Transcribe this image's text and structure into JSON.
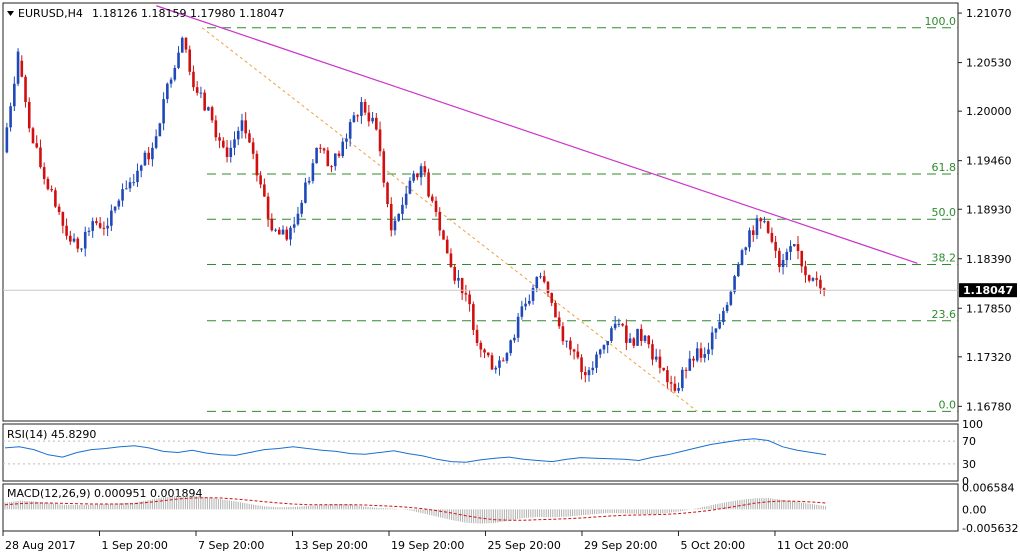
{
  "header": {
    "symbol_label": "EURUSD,H4",
    "ohlc_label": "1.18126 1.18159 1.17980 1.18047"
  },
  "price_panel": {
    "current_price_label": "1.18047",
    "y_ticks": [
      "1.21070",
      "1.20530",
      "1.20000",
      "1.19460",
      "1.18930",
      "1.18390",
      "1.17850",
      "1.17320",
      "1.16780"
    ]
  },
  "fib_levels": [
    {
      "label": "100.0",
      "price": 1.2091
    },
    {
      "label": "61.8",
      "price": 1.19315
    },
    {
      "label": "50.0",
      "price": 1.18821
    },
    {
      "label": "38.2",
      "price": 1.18327
    },
    {
      "label": "23.6",
      "price": 1.17713
    },
    {
      "label": "0.0",
      "price": 1.16725
    }
  ],
  "rsi_panel": {
    "label": "RSI(14) 45.8290",
    "y_ticks": [
      "100",
      "70",
      "30",
      "0"
    ]
  },
  "macd_panel": {
    "label": "MACD(12,26,9) 0.000951 0.001894",
    "y_ticks": [
      "0.006584",
      "0.00",
      "-0.005632"
    ]
  },
  "time_axis": [
    "28 Aug 2017",
    "1 Sep 20:00",
    "7 Sep 20:00",
    "13 Sep 20:00",
    "19 Sep 20:00",
    "25 Sep 20:00",
    "29 Sep 20:00",
    "5 Oct 20:00",
    "11 Oct 20:00"
  ],
  "colors": {
    "bull": "#1f49b8",
    "bear": "#d01010",
    "fib": "#2e8b2e",
    "trendline": "#cc33cc",
    "fib_diag": "#f0a040",
    "rsi": "#1a6fd0",
    "macd_signal": "#cc1111"
  },
  "chart_data": {
    "type": "candlestick",
    "symbol": "EURUSD",
    "timeframe": "H4",
    "ylim": [
      1.1662,
      1.2118
    ],
    "anchors": [
      [
        1.1955,
        1.2065
      ],
      [
        1.2055,
        1.1965
      ],
      [
        1.1965,
        1.1915
      ],
      [
        1.1915,
        1.1875
      ],
      [
        1.1875,
        1.185
      ],
      [
        1.185,
        1.188
      ],
      [
        1.188,
        1.1875
      ],
      [
        1.1875,
        1.1915
      ],
      [
        1.1915,
        1.1935
      ],
      [
        1.1935,
        1.196
      ],
      [
        1.196,
        1.203
      ],
      [
        1.203,
        1.208
      ],
      [
        1.208,
        1.202
      ],
      [
        1.202,
        1.199
      ],
      [
        1.199,
        1.195
      ],
      [
        1.195,
        1.199
      ],
      [
        1.199,
        1.193
      ],
      [
        1.193,
        1.187
      ],
      [
        1.187,
        1.186
      ],
      [
        1.186,
        1.19
      ],
      [
        1.19,
        1.196
      ],
      [
        1.196,
        1.194
      ],
      [
        1.194,
        1.197
      ],
      [
        1.197,
        1.201
      ],
      [
        1.201,
        1.198
      ],
      [
        1.198,
        1.187
      ],
      [
        1.187,
        1.191
      ],
      [
        1.191,
        1.194
      ],
      [
        1.194,
        1.189
      ],
      [
        1.189,
        1.183
      ],
      [
        1.183,
        1.18
      ],
      [
        1.18,
        1.174
      ],
      [
        1.174,
        1.172
      ],
      [
        1.172,
        1.175
      ],
      [
        1.175,
        1.179
      ],
      [
        1.179,
        1.182
      ],
      [
        1.182,
        1.1775
      ],
      [
        1.1775,
        1.174
      ],
      [
        1.174,
        1.1712
      ],
      [
        1.1712,
        1.174
      ],
      [
        1.174,
        1.1768
      ],
      [
        1.1768,
        1.1752
      ],
      [
        1.1752,
        1.1755
      ],
      [
        1.1755,
        1.172
      ],
      [
        1.172,
        1.1695
      ],
      [
        1.1695,
        1.173
      ],
      [
        1.173,
        1.1735
      ],
      [
        1.1735,
        1.177
      ],
      [
        1.177,
        1.182
      ],
      [
        1.182,
        1.187
      ],
      [
        1.187,
        1.188
      ],
      [
        1.188,
        1.183
      ],
      [
        1.183,
        1.1855
      ],
      [
        1.1855,
        1.1815
      ],
      [
        1.1815,
        1.18047
      ]
    ],
    "trendline": {
      "from": [
        0.165,
        1.2115
      ],
      "to": [
        0.995,
        1.1834
      ]
    },
    "fib_diagonal": {
      "from": [
        0.215,
        1.2091
      ],
      "to": [
        0.755,
        1.16725
      ]
    },
    "rsi_range": [
      0,
      100
    ],
    "rsi_values": [
      58,
      60,
      55,
      46,
      42,
      50,
      55,
      57,
      60,
      62,
      58,
      52,
      50,
      54,
      49,
      46,
      45,
      50,
      55,
      57,
      60,
      57,
      54,
      52,
      48,
      47,
      50,
      53,
      48,
      44,
      38,
      34,
      33,
      37,
      40,
      42,
      38,
      36,
      34,
      38,
      41,
      40,
      39,
      38,
      36,
      42,
      46,
      52,
      58,
      64,
      68,
      72,
      74,
      71,
      60,
      54,
      50,
      46
    ],
    "macd_range": [
      -0.0065,
      0.0076
    ],
    "macd_hist": [
      0.002,
      0.0026,
      0.0024,
      0.0019,
      0.0014,
      0.0013,
      0.0014,
      0.0016,
      0.0018,
      0.002,
      0.0028,
      0.0036,
      0.004,
      0.0041,
      0.0036,
      0.003,
      0.0024,
      0.0016,
      0.0009,
      0.0006,
      0.0007,
      0.001,
      0.0013,
      0.0016,
      0.0014,
      0.0008,
      0.0004,
      0.0002,
      -0.0002,
      -0.0012,
      -0.0022,
      -0.0032,
      -0.004,
      -0.0043,
      -0.0041,
      -0.0034,
      -0.0026,
      -0.0023,
      -0.0024,
      -0.0022,
      -0.0018,
      -0.0014,
      -0.0011,
      -0.0012,
      -0.0014,
      -0.0015,
      -0.0011,
      -0.0005,
      0.0003,
      0.0012,
      0.0021,
      0.0028,
      0.0033,
      0.0034,
      0.0028,
      0.0022,
      0.0016,
      0.00095
    ],
    "macd_signal": [
      0.0014,
      0.0017,
      0.0019,
      0.0019,
      0.0018,
      0.0017,
      0.0016,
      0.0016,
      0.0016,
      0.0017,
      0.0021,
      0.0026,
      0.0031,
      0.0034,
      0.0035,
      0.0034,
      0.0031,
      0.0027,
      0.0023,
      0.0019,
      0.0016,
      0.0014,
      0.0014,
      0.0014,
      0.0014,
      0.0013,
      0.0011,
      0.0009,
      0.0006,
      0.0002,
      -0.0004,
      -0.0011,
      -0.0019,
      -0.0026,
      -0.0031,
      -0.0033,
      -0.0033,
      -0.0031,
      -0.003,
      -0.0028,
      -0.0026,
      -0.0023,
      -0.002,
      -0.0018,
      -0.0017,
      -0.0016,
      -0.0015,
      -0.0012,
      -0.0008,
      -0.0003,
      0.0004,
      0.0011,
      0.0018,
      0.0023,
      0.0025,
      0.0024,
      0.0022,
      0.0019
    ]
  }
}
